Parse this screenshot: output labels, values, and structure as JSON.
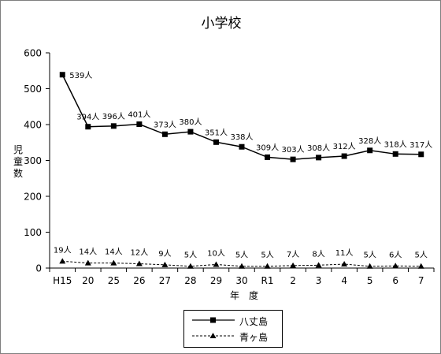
{
  "chart_data": {
    "type": "line",
    "title": "小学校",
    "xlabel": "年　度",
    "ylabel": "児童数",
    "categories": [
      "H15",
      "20",
      "25",
      "26",
      "27",
      "28",
      "29",
      "30",
      "R1",
      "2",
      "3",
      "4",
      "5",
      "6",
      "7"
    ],
    "ylim": [
      0,
      600
    ],
    "yticks": [
      0,
      100,
      200,
      300,
      400,
      500,
      600
    ],
    "grid": false,
    "legend_position": "bottom",
    "series": [
      {
        "name": "八丈島",
        "marker": "square",
        "line": "solid",
        "color": "#000000",
        "values": [
          539,
          394,
          396,
          401,
          373,
          380,
          351,
          338,
          309,
          303,
          308,
          312,
          328,
          318,
          317
        ],
        "labels": [
          "539人",
          "394人",
          "396人",
          "401人",
          "373人",
          "380人",
          "351人",
          "338人",
          "309人",
          "303人",
          "308人",
          "312人",
          "328人",
          "318人",
          "317人"
        ]
      },
      {
        "name": "青ヶ島",
        "marker": "triangle",
        "line": "dashed",
        "color": "#000000",
        "values": [
          19,
          14,
          14,
          12,
          9,
          5,
          10,
          5,
          5,
          7,
          8,
          11,
          5,
          6,
          5
        ],
        "labels": [
          "19人",
          "14人",
          "14人",
          "12人",
          "9人",
          "5人",
          "10人",
          "5人",
          "5人",
          "7人",
          "8人",
          "11人",
          "5人",
          "6人",
          "5人"
        ]
      }
    ]
  }
}
